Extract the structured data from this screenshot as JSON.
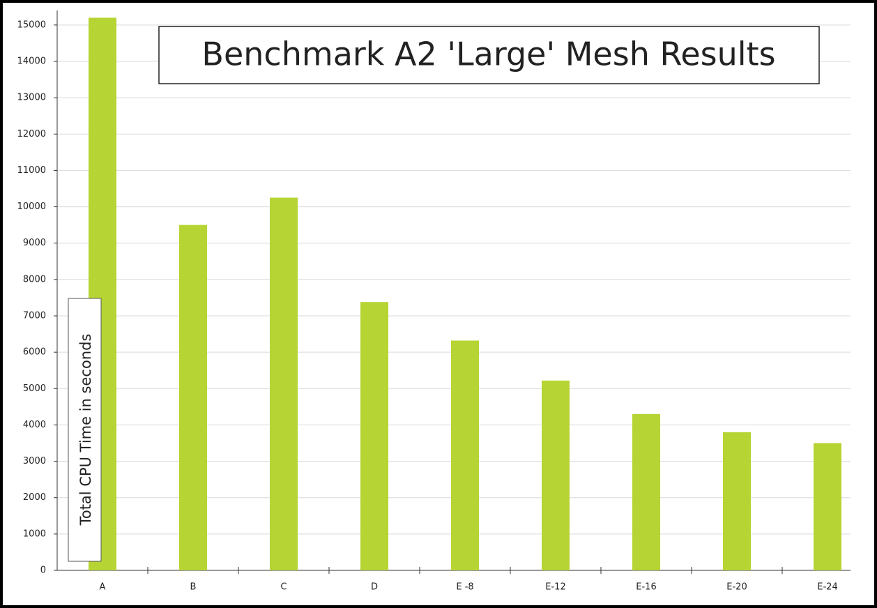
{
  "chart_data": {
    "type": "bar",
    "title": "Benchmark A2 'Large' Mesh Results",
    "y_label": "Total CPU Time in seconds",
    "categories": [
      "A",
      "B",
      "C",
      "D",
      "E -8",
      "E-12",
      "E-16",
      "E-20",
      "E-24"
    ],
    "values": [
      15200,
      9500,
      10250,
      7380,
      6320,
      5220,
      4300,
      3800,
      3500
    ],
    "color": "#b6d433",
    "ylim": [
      0,
      15400
    ],
    "yticks": [
      0,
      1000,
      2000,
      3000,
      4000,
      5000,
      6000,
      7000,
      8000,
      9000,
      10000,
      11000,
      12000,
      13000,
      14000,
      15000
    ],
    "grid": true
  }
}
